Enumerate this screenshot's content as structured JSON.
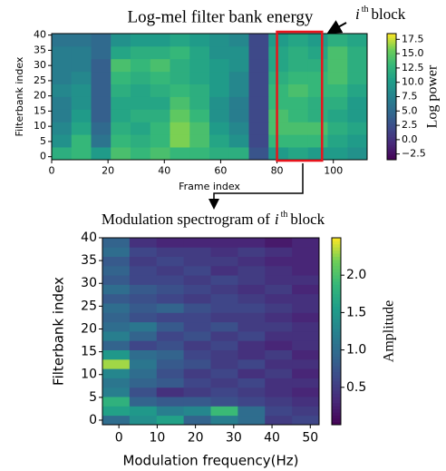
{
  "chart_data": [
    {
      "type": "heatmap",
      "title": "Log-mel filter bank energy",
      "annotation": {
        "symbol": "i",
        "superscript": "th",
        "text": "block"
      },
      "x_label": "Frame index",
      "y_label": "Filterbank index",
      "colorbar_label": "Log power",
      "colormap": "viridis",
      "xlim": [
        0,
        112
      ],
      "ylim": [
        -1,
        40.5
      ],
      "xticks": [
        0,
        20,
        40,
        60,
        80,
        100
      ],
      "yticks": [
        0,
        5,
        10,
        15,
        20,
        25,
        30,
        35,
        40
      ],
      "clim": [
        -3.5,
        18.5
      ],
      "cticks": [
        {
          "value": -2.5,
          "label": "−2.5"
        },
        {
          "value": 0,
          "label": "0.0"
        },
        2.5,
        {
          "value": 5,
          "label": "5.0"
        },
        7.5,
        {
          "value": 10,
          "label": "10.0"
        },
        12.5,
        {
          "value": 15,
          "label": "15.0"
        },
        17.5
      ],
      "highlight_xlim": [
        80,
        96
      ],
      "highlight_color": "#e8141c",
      "values": [
        [
          12,
          13,
          10,
          14,
          13,
          14,
          13,
          13,
          12,
          12,
          3,
          10,
          11,
          10,
          10,
          9
        ],
        [
          9,
          13,
          6,
          13,
          12,
          13,
          16,
          14,
          11,
          9,
          2,
          13,
          13,
          13,
          11,
          10
        ],
        [
          8,
          11,
          5,
          12,
          11,
          13,
          16,
          14,
          10,
          8,
          2,
          14,
          14,
          14,
          12,
          11
        ],
        [
          7,
          10,
          4,
          11,
          12,
          12,
          15,
          13,
          9,
          7,
          2,
          14,
          13,
          12,
          11,
          10
        ],
        [
          7,
          9,
          4,
          11,
          11,
          11,
          14,
          12,
          9,
          7,
          2,
          13,
          13,
          12,
          12,
          10
        ],
        [
          8,
          9,
          4,
          12,
          11,
          12,
          13,
          12,
          10,
          8,
          2,
          13,
          14,
          13,
          13,
          11
        ],
        [
          7,
          8,
          4,
          13,
          12,
          13,
          12,
          11,
          10,
          8,
          2,
          12,
          13,
          13,
          14,
          12
        ],
        [
          7,
          7,
          4,
          14,
          13,
          14,
          12,
          11,
          10,
          9,
          2,
          11,
          12,
          12,
          14,
          12
        ],
        [
          7,
          7,
          5,
          11,
          12,
          12,
          13,
          11,
          9,
          9,
          2,
          11,
          12,
          11,
          14,
          12
        ],
        [
          6,
          6,
          5,
          9,
          10,
          10,
          11,
          10,
          9,
          8,
          2,
          10,
          11,
          10,
          12,
          11
        ]
      ]
    },
    {
      "type": "heatmap",
      "title": {
        "prefix": "Modulation spectrogram of",
        "symbol": "i",
        "superscript": "th",
        "suffix": "block"
      },
      "x_label": "Modulation frequency(Hz)",
      "y_label": "Filterbank index",
      "colorbar_label": "Amplitude",
      "colormap": "viridis",
      "xlim": [
        -4.3,
        52.3
      ],
      "ylim": [
        -1,
        40
      ],
      "xticks": [
        0,
        10,
        20,
        30,
        40,
        50
      ],
      "yticks": [
        0,
        5,
        10,
        15,
        20,
        25,
        30,
        35,
        40
      ],
      "clim": [
        0,
        2.5
      ],
      "cticks": [
        0.5,
        {
          "value": 1,
          "label": "1.0"
        },
        1.5,
        {
          "value": 2,
          "label": "2.0"
        }
      ],
      "values": [
        [
          1.0,
          1.4,
          1.6,
          0.9,
          1.2,
          1.0,
          0.5,
          0.6
        ],
        [
          1.6,
          1.5,
          1.2,
          1.3,
          1.9,
          1.0,
          0.6,
          0.5
        ],
        [
          1.8,
          0.9,
          0.8,
          0.8,
          0.7,
          0.6,
          0.5,
          0.4
        ],
        [
          1.2,
          0.7,
          0.4,
          0.5,
          0.6,
          0.5,
          0.4,
          0.3
        ],
        [
          1.1,
          0.9,
          0.8,
          0.6,
          0.5,
          0.6,
          0.4,
          0.4
        ],
        [
          1.3,
          1.0,
          0.7,
          0.5,
          0.6,
          0.4,
          0.5,
          0.3
        ],
        [
          2.3,
          1.1,
          0.8,
          0.7,
          0.5,
          0.6,
          0.4,
          0.4
        ],
        [
          1.5,
          1.0,
          0.9,
          0.6,
          0.5,
          0.4,
          0.5,
          0.3
        ],
        [
          0.9,
          0.6,
          0.7,
          0.5,
          0.6,
          0.4,
          0.3,
          0.4
        ],
        [
          1.2,
          0.9,
          0.6,
          0.7,
          0.5,
          0.6,
          0.4,
          0.4
        ],
        [
          1.0,
          1.1,
          0.8,
          0.6,
          0.7,
          0.5,
          0.5,
          0.4
        ],
        [
          0.9,
          0.7,
          0.6,
          0.6,
          0.5,
          0.5,
          0.4,
          0.3
        ],
        [
          1.0,
          0.8,
          0.9,
          0.7,
          0.6,
          0.6,
          0.5,
          0.4
        ],
        [
          0.8,
          0.7,
          0.6,
          0.5,
          0.6,
          0.5,
          0.4,
          0.4
        ],
        [
          1.0,
          0.8,
          0.7,
          0.6,
          0.5,
          0.4,
          0.5,
          0.3
        ],
        [
          0.8,
          0.6,
          0.6,
          0.5,
          0.6,
          0.5,
          0.4,
          0.4
        ],
        [
          0.9,
          0.6,
          0.5,
          0.6,
          0.4,
          0.5,
          0.4,
          0.3
        ],
        [
          0.8,
          0.5,
          0.6,
          0.5,
          0.5,
          0.4,
          0.3,
          0.3
        ],
        [
          1.0,
          0.6,
          0.5,
          0.5,
          0.4,
          0.5,
          0.4,
          0.3
        ],
        [
          0.9,
          0.4,
          0.3,
          0.3,
          0.3,
          0.3,
          0.2,
          0.3
        ]
      ]
    }
  ]
}
